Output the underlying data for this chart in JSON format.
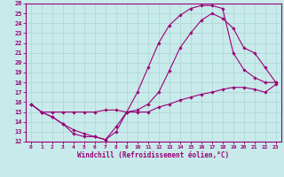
{
  "xlabel": "Windchill (Refroidissement éolien,°C)",
  "bg_color": "#c8eaea",
  "grid_color": "#b0d8d8",
  "line_color": "#990077",
  "xlim": [
    -0.5,
    23.5
  ],
  "ylim": [
    12,
    26
  ],
  "xticks": [
    0,
    1,
    2,
    3,
    4,
    5,
    6,
    7,
    8,
    9,
    10,
    11,
    12,
    13,
    14,
    15,
    16,
    17,
    18,
    19,
    20,
    21,
    22,
    23
  ],
  "yticks": [
    12,
    13,
    14,
    15,
    16,
    17,
    18,
    19,
    20,
    21,
    22,
    23,
    24,
    25,
    26
  ],
  "line1_x": [
    0,
    1,
    2,
    3,
    4,
    5,
    6,
    7,
    8,
    9,
    10,
    11,
    12,
    13,
    14,
    15,
    16,
    17,
    18,
    19,
    20,
    21,
    22,
    23
  ],
  "line1_y": [
    15.8,
    15.0,
    14.5,
    13.8,
    12.8,
    12.5,
    12.5,
    12.2,
    13.5,
    15.0,
    15.0,
    15.0,
    15.5,
    15.8,
    16.2,
    16.5,
    16.8,
    17.0,
    17.3,
    17.5,
    17.5,
    17.3,
    17.0,
    17.8
  ],
  "line2_x": [
    0,
    1,
    2,
    3,
    4,
    5,
    6,
    7,
    8,
    9,
    10,
    11,
    12,
    13,
    14,
    15,
    16,
    17,
    18,
    19,
    20,
    21,
    22,
    23
  ],
  "line2_y": [
    15.8,
    15.0,
    14.5,
    13.8,
    13.2,
    12.8,
    12.5,
    12.2,
    13.0,
    15.0,
    17.0,
    19.5,
    22.0,
    23.8,
    24.8,
    25.5,
    25.8,
    25.8,
    25.5,
    21.0,
    19.3,
    18.5,
    18.0,
    18.0
  ],
  "line3_x": [
    0,
    1,
    2,
    3,
    4,
    5,
    6,
    7,
    8,
    9,
    10,
    11,
    12,
    13,
    14,
    15,
    16,
    17,
    18,
    19,
    20,
    21,
    22,
    23
  ],
  "line3_y": [
    15.8,
    15.0,
    15.0,
    15.0,
    15.0,
    15.0,
    15.0,
    15.2,
    15.2,
    15.0,
    15.2,
    15.8,
    17.0,
    19.2,
    21.5,
    23.0,
    24.3,
    25.0,
    24.5,
    23.5,
    21.5,
    21.0,
    19.5,
    18.0
  ]
}
